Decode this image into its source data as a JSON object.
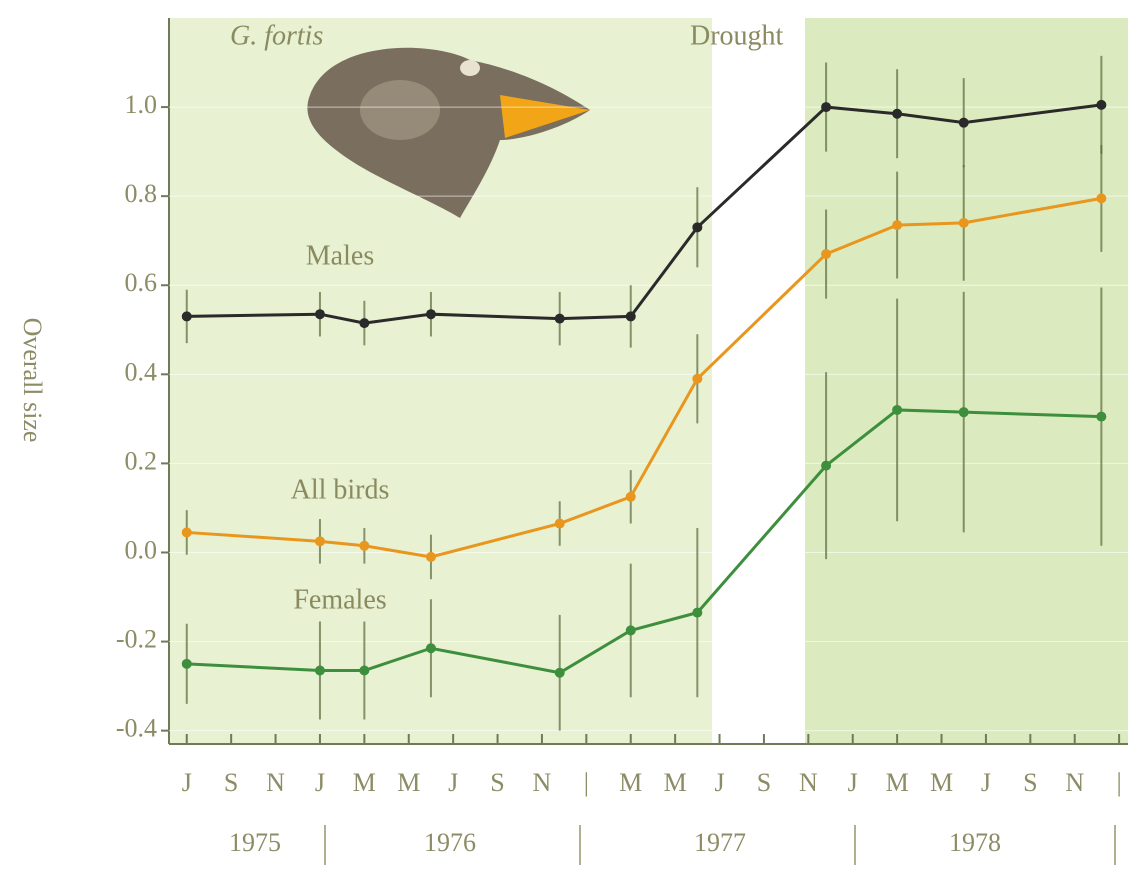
{
  "chart_data": {
    "type": "line",
    "ylabel": "Overall size",
    "annotations": [
      "G. fortis",
      "Drought"
    ],
    "years": [
      "1975",
      "1976",
      "1977",
      "1978"
    ],
    "xlim": [
      -0.4,
      21.2
    ],
    "xticks": [
      {
        "value": 0,
        "label": "J"
      },
      {
        "value": 1,
        "label": "S"
      },
      {
        "value": 2,
        "label": "N"
      },
      {
        "value": 3,
        "label": "J"
      },
      {
        "value": 4,
        "label": "M"
      },
      {
        "value": 5,
        "label": "M"
      },
      {
        "value": 6,
        "label": "J"
      },
      {
        "value": 7,
        "label": "S"
      },
      {
        "value": 8,
        "label": "N"
      },
      {
        "value": 9,
        "label": "|"
      },
      {
        "value": 10,
        "label": "M"
      },
      {
        "value": 11,
        "label": "M"
      },
      {
        "value": 12,
        "label": "J"
      },
      {
        "value": 13,
        "label": "S"
      },
      {
        "value": 14,
        "label": "N"
      },
      {
        "value": 15,
        "label": "J"
      },
      {
        "value": 16,
        "label": "M"
      },
      {
        "value": 17,
        "label": "M"
      },
      {
        "value": 18,
        "label": "J"
      },
      {
        "value": 19,
        "label": "S"
      },
      {
        "value": 20,
        "label": "N"
      },
      {
        "value": 21,
        "label": "|"
      }
    ],
    "ylim": [
      -0.43,
      1.2
    ],
    "yticks": [
      {
        "value": -0.4,
        "label": "-0.4"
      },
      -0.2,
      {
        "value": 0,
        "label": "0.0"
      },
      0.2,
      0.4,
      0.6,
      0.8,
      {
        "value": 1,
        "label": "1.0"
      }
    ],
    "x": [
      0,
      3,
      4,
      5.5,
      8.4,
      10,
      11.5,
      14.4,
      16,
      17.5,
      20.6
    ],
    "series": [
      {
        "name": "Males",
        "color": "#2a2a2a",
        "values": [
          0.53,
          0.535,
          0.515,
          0.535,
          0.525,
          0.53,
          0.73,
          1.0,
          0.985,
          0.965,
          1.005
        ],
        "errors": [
          0.06,
          0.05,
          0.05,
          0.05,
          0.06,
          0.07,
          0.09,
          0.1,
          0.1,
          0.1,
          0.11
        ]
      },
      {
        "name": "All birds",
        "color": "#e8961e",
        "values": [
          0.045,
          0.025,
          0.015,
          -0.01,
          0.065,
          0.125,
          0.39,
          0.67,
          0.735,
          0.74,
          0.795
        ],
        "errors": [
          0.05,
          0.05,
          0.04,
          0.05,
          0.05,
          0.06,
          0.1,
          0.1,
          0.12,
          0.13,
          0.12
        ]
      },
      {
        "name": "Females",
        "color": "#3d8f3d",
        "values": [
          -0.25,
          -0.265,
          -0.265,
          -0.215,
          -0.27,
          -0.175,
          -0.135,
          0.195,
          0.32,
          0.315,
          0.305
        ],
        "errors": [
          0.09,
          0.11,
          0.11,
          0.11,
          0.13,
          0.15,
          0.19,
          0.21,
          0.25,
          0.27,
          0.29
        ]
      }
    ]
  }
}
